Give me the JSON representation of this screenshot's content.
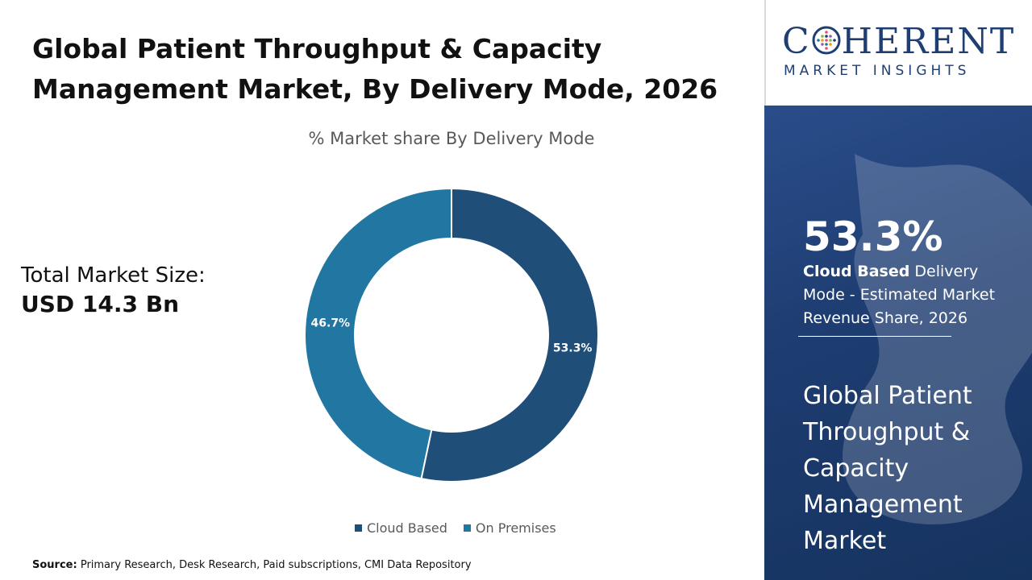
{
  "title": "Global Patient Throughput & Capacity Management Market, By Delivery Mode, 2026",
  "market_size": {
    "label": "Total Market Size:",
    "value": "USD 14.3 Bn"
  },
  "source": {
    "label": "Source:",
    "text": "Primary Research, Desk Research, Paid subscriptions, CMI Data Repository"
  },
  "logo": {
    "word_before": "C",
    "word_after": "HERENT",
    "subtitle": "MARKET INSIGHTS"
  },
  "highlight": {
    "value": "53.3%",
    "segment_bold": "Cloud Based",
    "description": " Delivery Mode - Estimated Market Revenue Share, 2026"
  },
  "market_name": "Global Patient Throughput & Capacity Management Market",
  "colors": {
    "cloud_based": "#1f4e79",
    "on_premises": "#2176a2",
    "panel_dark": "#1d3c70"
  },
  "chart_data": {
    "type": "pie",
    "variant": "donut",
    "title": "% Market share By Delivery Mode",
    "categories": [
      "Cloud Based",
      "On Premises"
    ],
    "values": [
      53.3,
      46.7
    ],
    "data_labels": [
      "53.3%",
      "46.7%"
    ],
    "legend_position": "bottom"
  }
}
